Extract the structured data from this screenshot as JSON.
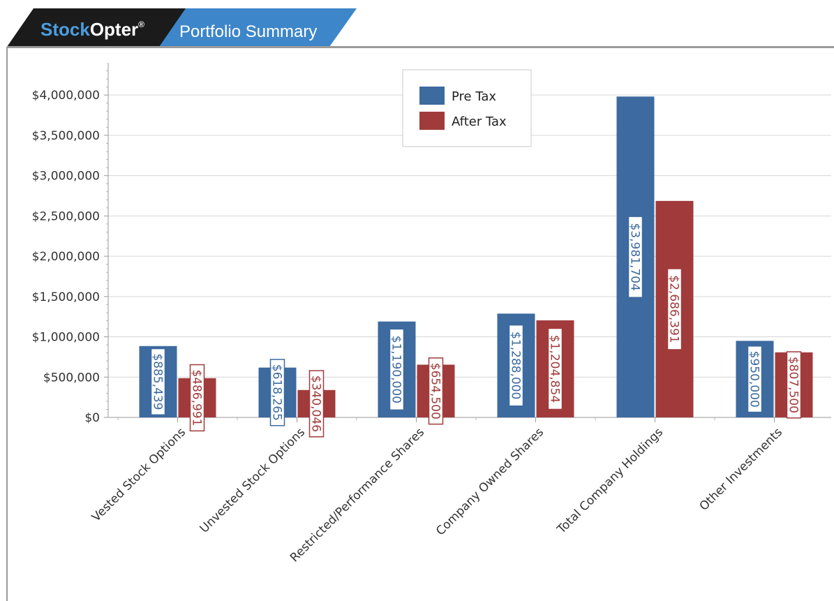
{
  "header": {
    "brand_part1": "Stock",
    "brand_part2": "Opter",
    "brand_mark": "®",
    "page_title": "Portfolio Summary",
    "colors": {
      "dark_tab": "#1b1b1b",
      "blue_tab": "#3d86c9",
      "brand_blue": "#4a9ee0"
    }
  },
  "chart_data": {
    "type": "bar",
    "categories": [
      "Vested Stock Options",
      "Unvested Stock Options",
      "Restricted/Performance Shares",
      "Company Owned Shares",
      "Total Company Holdings",
      "Other Investments"
    ],
    "series": [
      {
        "name": "Pre Tax",
        "color": "#3d6a9f",
        "values": [
          885439,
          618265,
          1190000,
          1288000,
          3981704,
          950000
        ],
        "labels": [
          "$885,439",
          "$618,265",
          "$1,190,000",
          "$1,288,000",
          "$3,981,704",
          "$950,000"
        ]
      },
      {
        "name": "After Tax",
        "color": "#a13b3b",
        "values": [
          486991,
          340046,
          654500,
          1204854,
          2686391,
          807500
        ],
        "labels": [
          "$486,991",
          "$340,046",
          "$654,500",
          "$1,204,854",
          "$2,686,391",
          "$807,500"
        ]
      }
    ],
    "yticks": [
      0,
      500000,
      1000000,
      1500000,
      2000000,
      2500000,
      3000000,
      3500000,
      4000000
    ],
    "ytick_labels": [
      "$0",
      "$500,000",
      "$1,000,000",
      "$1,500,000",
      "$2,000,000",
      "$2,500,000",
      "$3,000,000",
      "$3,500,000",
      "$4,000,000"
    ],
    "ylim": [
      0,
      4400000
    ],
    "grid": true,
    "legend_position": "top-center"
  }
}
